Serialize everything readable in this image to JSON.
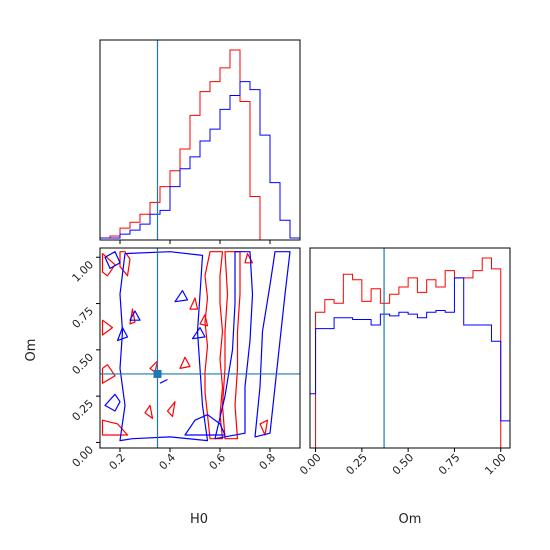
{
  "chart_data": {
    "type": "corner",
    "colors": {
      "series_a": "#ff0000",
      "series_b": "#0000ff",
      "truth": "#1f77b4"
    },
    "parameters": [
      "H0",
      "Om"
    ],
    "truth": {
      "H0": 0.35,
      "Om": 0.37
    },
    "panels": [
      {
        "kind": "histogram",
        "parameter": "H0",
        "xlim": [
          0.12,
          0.92
        ],
        "bin_edges": [
          0.12,
          0.16,
          0.2,
          0.24,
          0.28,
          0.32,
          0.36,
          0.4,
          0.44,
          0.48,
          0.52,
          0.56,
          0.6,
          0.64,
          0.68,
          0.72,
          0.76,
          0.8,
          0.84,
          0.88,
          0.92
        ],
        "series": [
          {
            "color_key": "series_a",
            "counts": [
              1,
              2,
              6,
              9,
              13,
              19,
              27,
              35,
              46,
              63,
              75,
              80,
              87,
              96,
              70,
              22,
              0,
              0,
              0,
              0
            ]
          },
          {
            "color_key": "series_b",
            "counts": [
              1,
              1,
              3,
              5,
              8,
              13,
              15,
              27,
              36,
              42,
              50,
              56,
              66,
              73,
              80,
              76,
              53,
              29,
              10,
              1
            ]
          }
        ],
        "xticks": [
          0.2,
          0.4,
          0.6,
          0.8
        ],
        "xtick_labels": []
      },
      {
        "kind": "contour",
        "x_parameter": "H0",
        "y_parameter": "Om",
        "xlabel": "H0",
        "ylabel": "Om",
        "xlim": [
          0.12,
          0.92
        ],
        "ylim": [
          -0.03,
          1.05
        ],
        "xticks": [
          0.2,
          0.4,
          0.6,
          0.8
        ],
        "xtick_labels": [
          "0.2",
          "0.4",
          "0.6",
          "0.8"
        ],
        "yticks": [
          0.0,
          0.25,
          0.5,
          0.75,
          1.0
        ],
        "ytick_labels": [
          "0.00",
          "0.25",
          "0.50",
          "0.75",
          "1.00"
        ],
        "series": [
          {
            "color_key": "series_a",
            "contours": [
              [
                [
                  0.56,
                  0.02
                ],
                [
                  0.55,
                  0.15
                ],
                [
                  0.54,
                  0.27
                ],
                [
                  0.54,
                  0.38
                ],
                [
                  0.55,
                  0.52
                ],
                [
                  0.54,
                  0.65
                ],
                [
                  0.55,
                  0.78
                ],
                [
                  0.54,
                  0.9
                ],
                [
                  0.56,
                  1.03
                ],
                [
                  0.61,
                  1.03
                ],
                [
                  0.6,
                  0.9
                ],
                [
                  0.6,
                  0.75
                ],
                [
                  0.61,
                  0.6
                ],
                [
                  0.6,
                  0.45
                ],
                [
                  0.61,
                  0.3
                ],
                [
                  0.6,
                  0.15
                ],
                [
                  0.61,
                  0.02
                ]
              ],
              [
                [
                  0.62,
                  0.02
                ],
                [
                  0.61,
                  0.2
                ],
                [
                  0.62,
                  0.4
                ],
                [
                  0.62,
                  0.6
                ],
                [
                  0.63,
                  0.8
                ],
                [
                  0.62,
                  1.03
                ],
                [
                  0.68,
                  1.03
                ],
                [
                  0.68,
                  0.8
                ],
                [
                  0.67,
                  0.6
                ],
                [
                  0.67,
                  0.4
                ],
                [
                  0.66,
                  0.2
                ],
                [
                  0.67,
                  0.02
                ]
              ],
              [
                [
                  0.13,
                  0.04
                ],
                [
                  0.13,
                  0.12
                ],
                [
                  0.19,
                  0.1
                ],
                [
                  0.23,
                  0.04
                ]
              ],
              [
                [
                  0.13,
                  0.32
                ],
                [
                  0.18,
                  0.36
                ],
                [
                  0.15,
                  0.42
                ],
                [
                  0.13,
                  0.4
                ]
              ],
              [
                [
                  0.13,
                  0.58
                ],
                [
                  0.17,
                  0.62
                ],
                [
                  0.13,
                  0.66
                ]
              ],
              [
                [
                  0.13,
                  1.02
                ],
                [
                  0.18,
                  0.96
                ],
                [
                  0.15,
                  0.9
                ],
                [
                  0.13,
                  0.92
                ]
              ],
              [
                [
                  0.2,
                  1.03
                ],
                [
                  0.2,
                  0.95
                ],
                [
                  0.23,
                  0.9
                ],
                [
                  0.24,
                  0.99
                ],
                [
                  0.22,
                  1.03
                ]
              ],
              [
                [
                  0.24,
                  0.64
                ],
                [
                  0.25,
                  0.72
                ],
                [
                  0.26,
                  0.65
                ]
              ],
              [
                [
                  0.32,
                  0.4
                ],
                [
                  0.35,
                  0.44
                ],
                [
                  0.34,
                  0.38
                ]
              ],
              [
                [
                  0.39,
                  0.17
                ],
                [
                  0.42,
                  0.22
                ],
                [
                  0.41,
                  0.14
                ]
              ],
              [
                [
                  0.3,
                  0.16
                ],
                [
                  0.32,
                  0.2
                ],
                [
                  0.33,
                  0.13
                ]
              ],
              [
                [
                  0.44,
                  0.4
                ],
                [
                  0.46,
                  0.46
                ],
                [
                  0.48,
                  0.41
                ]
              ],
              [
                [
                  0.52,
                  0.64
                ],
                [
                  0.54,
                  0.69
                ],
                [
                  0.55,
                  0.63
                ]
              ],
              [
                [
                  0.48,
                  0.72
                ],
                [
                  0.5,
                  0.78
                ],
                [
                  0.51,
                  0.72
                ]
              ],
              [
                [
                  0.7,
                  0.97
                ],
                [
                  0.71,
                  1.02
                ],
                [
                  0.73,
                  0.97
                ]
              ],
              [
                [
                  0.76,
                  0.1
                ],
                [
                  0.79,
                  0.12
                ],
                [
                  0.78,
                  0.04
                ]
              ]
            ]
          },
          {
            "color_key": "series_b",
            "contours": [
              [
                [
                  0.2,
                  0.01
                ],
                [
                  0.22,
                  0.2
                ],
                [
                  0.2,
                  0.4
                ],
                [
                  0.21,
                  0.6
                ],
                [
                  0.2,
                  0.8
                ],
                [
                  0.22,
                  1.02
                ],
                [
                  0.4,
                  1.03
                ],
                [
                  0.53,
                  1.01
                ],
                [
                  0.52,
                  0.8
                ],
                [
                  0.51,
                  0.6
                ],
                [
                  0.52,
                  0.4
                ],
                [
                  0.53,
                  0.2
                ],
                [
                  0.55,
                  0.01
                ],
                [
                  0.4,
                  0.03
                ],
                [
                  0.25,
                  0.02
                ]
              ],
              [
                [
                  0.58,
                  0.02
                ],
                [
                  0.62,
                  0.25
                ],
                [
                  0.65,
                  0.5
                ],
                [
                  0.66,
                  0.75
                ],
                [
                  0.66,
                  1.03
                ],
                [
                  0.72,
                  1.03
                ],
                [
                  0.73,
                  0.8
                ],
                [
                  0.72,
                  0.55
                ],
                [
                  0.7,
                  0.3
                ],
                [
                  0.7,
                  0.05
                ]
              ],
              [
                [
                  0.74,
                  0.03
                ],
                [
                  0.76,
                  0.3
                ],
                [
                  0.77,
                  0.6
                ],
                [
                  0.8,
                  0.85
                ],
                [
                  0.82,
                  1.03
                ],
                [
                  0.88,
                  1.03
                ],
                [
                  0.86,
                  0.8
                ],
                [
                  0.84,
                  0.55
                ],
                [
                  0.82,
                  0.3
                ],
                [
                  0.8,
                  0.05
                ]
              ],
              [
                [
                  0.46,
                  0.04
                ],
                [
                  0.5,
                  0.12
                ],
                [
                  0.55,
                  0.15
                ],
                [
                  0.6,
                  0.1
                ],
                [
                  0.62,
                  0.04
                ]
              ],
              [
                [
                  0.14,
                  0.2
                ],
                [
                  0.18,
                  0.26
                ],
                [
                  0.2,
                  0.22
                ],
                [
                  0.18,
                  0.17
                ]
              ],
              [
                [
                  0.14,
                  1.0
                ],
                [
                  0.18,
                  1.03
                ],
                [
                  0.2,
                  0.97
                ],
                [
                  0.16,
                  0.94
                ]
              ],
              [
                [
                  0.19,
                  0.55
                ],
                [
                  0.21,
                  0.62
                ],
                [
                  0.23,
                  0.57
                ]
              ],
              [
                [
                  0.49,
                  0.56
                ],
                [
                  0.52,
                  0.62
                ],
                [
                  0.54,
                  0.57
                ]
              ],
              [
                [
                  0.42,
                  0.76
                ],
                [
                  0.45,
                  0.82
                ],
                [
                  0.47,
                  0.77
                ]
              ],
              [
                [
                  0.36,
                  0.32
                ],
                [
                  0.39,
                  0.34
                ]
              ],
              [
                [
                  0.24,
                  0.66
                ],
                [
                  0.26,
                  0.71
                ],
                [
                  0.28,
                  0.66
                ]
              ]
            ]
          }
        ]
      },
      {
        "kind": "histogram",
        "parameter": "Om",
        "xlabel": "Om",
        "xlim": [
          -0.03,
          1.05
        ],
        "bin_edges": [
          -0.03,
          0.0,
          0.05,
          0.1,
          0.15,
          0.2,
          0.25,
          0.3,
          0.35,
          0.4,
          0.45,
          0.5,
          0.55,
          0.6,
          0.65,
          0.7,
          0.75,
          0.8,
          0.85,
          0.9,
          0.95,
          1.0,
          1.05
        ],
        "series": [
          {
            "color_key": "series_a",
            "counts": [
              0,
              75,
              82,
              80,
              96,
              93,
              81,
              88,
              80,
              85,
              89,
              94,
              86,
              93,
              89,
              98,
              94,
              94,
              98,
              105,
              99,
              0
            ]
          },
          {
            "color_key": "series_b",
            "counts": [
              30,
              66,
              66,
              72,
              72,
              71,
              71,
              68,
              74,
              73,
              75,
              74,
              72,
              75,
              76,
              75,
              94,
              68,
              68,
              68,
              59,
              15
            ]
          }
        ],
        "xticks": [
          0.0,
          0.25,
          0.5,
          0.75,
          1.0
        ],
        "xtick_labels": [
          "0.00",
          "0.25",
          "0.50",
          "0.75",
          "1.00"
        ]
      }
    ]
  }
}
